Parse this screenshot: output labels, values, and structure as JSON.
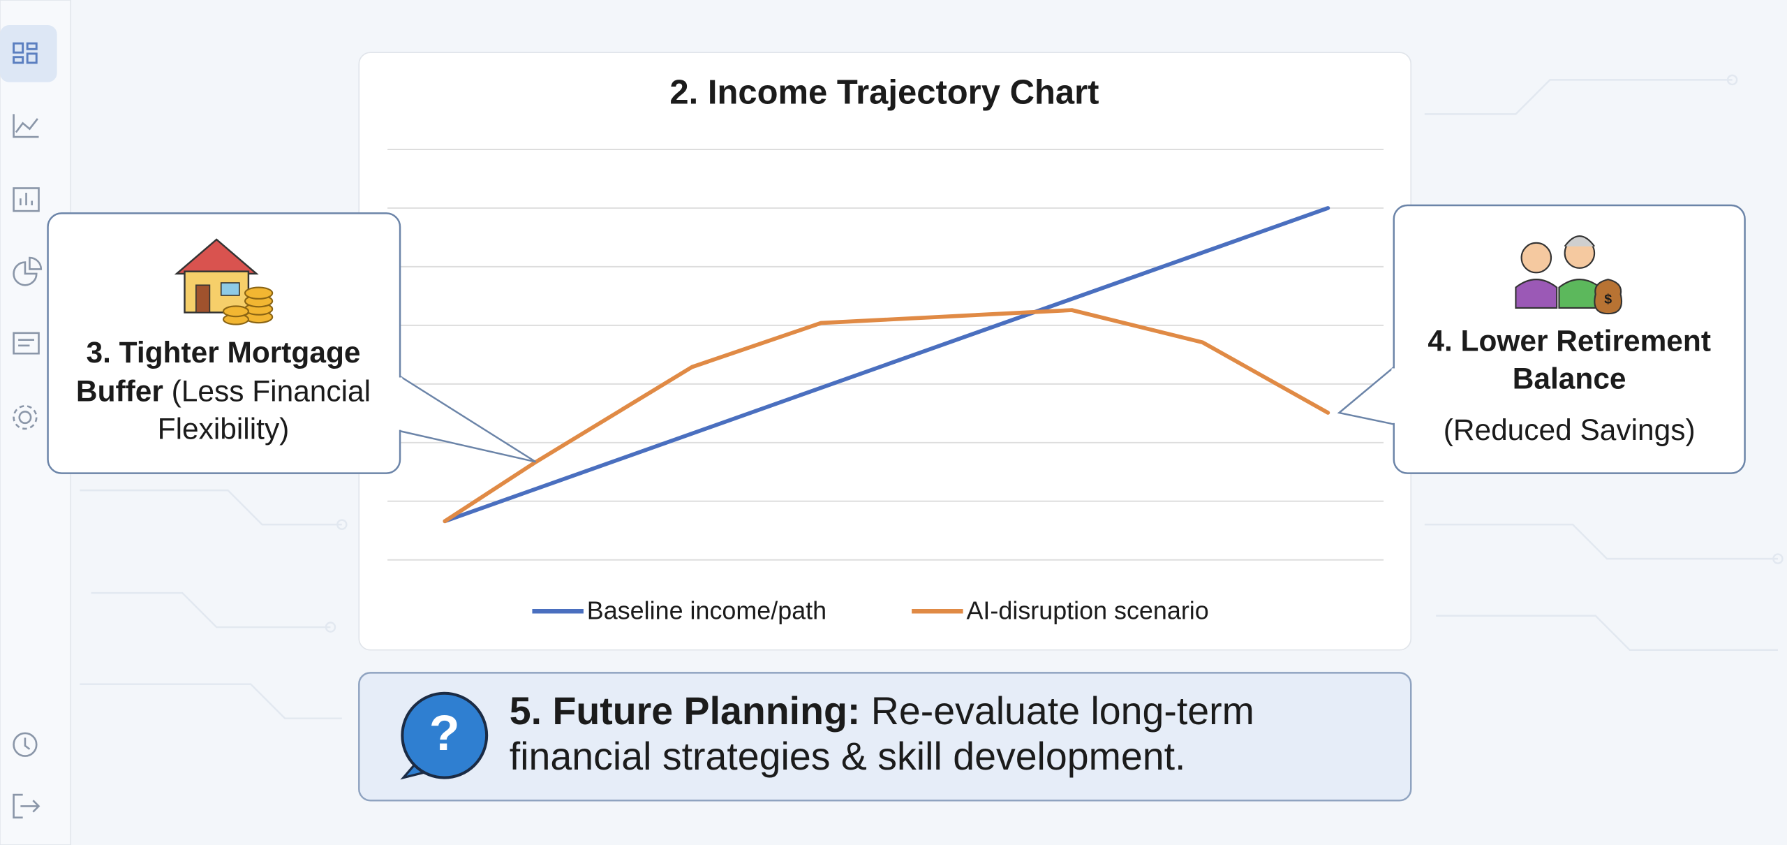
{
  "chart_data": {
    "type": "line",
    "title": "2. Income Trajectory Chart",
    "xlim": [
      -0.65,
      10.63
    ],
    "ylim": [
      0,
      7
    ],
    "yticks": [
      0,
      1,
      2,
      3,
      4,
      5,
      6,
      7
    ],
    "grid": true,
    "series": [
      {
        "name": "Baseline income/path",
        "color": "#4a6fbf",
        "x": [
          0,
          10
        ],
        "values": [
          0.66,
          6.0
        ]
      },
      {
        "name": "AI-disruption scenario",
        "color": "#e08a45",
        "x": [
          0,
          1.03,
          2.8,
          4.26,
          7.1,
          8.58,
          10
        ],
        "values": [
          0.66,
          1.67,
          3.29,
          4.04,
          4.26,
          3.71,
          2.51
        ]
      }
    ]
  },
  "callouts": {
    "mortgage": {
      "title_lines": [
        "3. Tighter Mortgage",
        "Buffer"
      ],
      "detail_lines": [
        "(Less Financial",
        "Flexibility)"
      ]
    },
    "retirement": {
      "title_lines": [
        "4. Lower Retirement",
        "Balance"
      ],
      "detail": "(Reduced Savings)"
    }
  },
  "planning": {
    "label": "5. Future Planning:",
    "lines": [
      "Re-evaluate long-term",
      "financial strategies & skill development."
    ]
  }
}
